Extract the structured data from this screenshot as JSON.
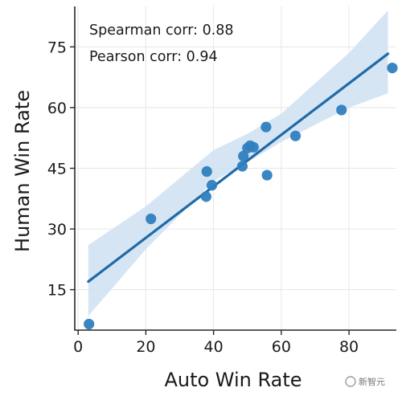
{
  "chart_data": {
    "type": "scatter",
    "xlabel": "Auto Win Rate",
    "ylabel": "Human Win Rate",
    "xlim": [
      -1,
      94
    ],
    "ylim": [
      5,
      85
    ],
    "xticks": [
      0,
      20,
      40,
      60,
      80
    ],
    "yticks": [
      15,
      30,
      45,
      60,
      75
    ],
    "grid": true,
    "annotations": [
      "Spearman corr: 0.88",
      "Pearson corr: 0.94"
    ],
    "points": [
      {
        "x": 3.2,
        "y": 6.5
      },
      {
        "x": 21.5,
        "y": 32.5
      },
      {
        "x": 37.8,
        "y": 38.0
      },
      {
        "x": 38.0,
        "y": 44.2
      },
      {
        "x": 39.5,
        "y": 40.8
      },
      {
        "x": 48.5,
        "y": 45.5
      },
      {
        "x": 48.8,
        "y": 48.0
      },
      {
        "x": 50.0,
        "y": 50.0
      },
      {
        "x": 50.8,
        "y": 50.6
      },
      {
        "x": 51.8,
        "y": 50.2
      },
      {
        "x": 55.5,
        "y": 55.2
      },
      {
        "x": 55.8,
        "y": 43.3
      },
      {
        "x": 64.2,
        "y": 53.0
      },
      {
        "x": 77.8,
        "y": 59.4
      },
      {
        "x": 92.8,
        "y": 69.8
      }
    ],
    "regression": {
      "x": [
        3,
        91.5
      ],
      "y": [
        17,
        73.3
      ]
    },
    "ci_band": {
      "x": [
        3,
        20,
        40,
        50,
        60,
        80,
        91.5
      ],
      "upper": [
        26,
        35.6,
        49.5,
        53.5,
        58.5,
        73.5,
        84
      ],
      "lower": [
        8.5,
        25,
        41.8,
        46.5,
        51.5,
        60,
        63.5
      ]
    },
    "colors": {
      "point": "#2f7fbf",
      "line": "#1f6aa8",
      "band": "#cfe1f2",
      "grid": "#e6e6e6",
      "axis": "#262626"
    }
  },
  "watermark": {
    "text": "新智元"
  }
}
